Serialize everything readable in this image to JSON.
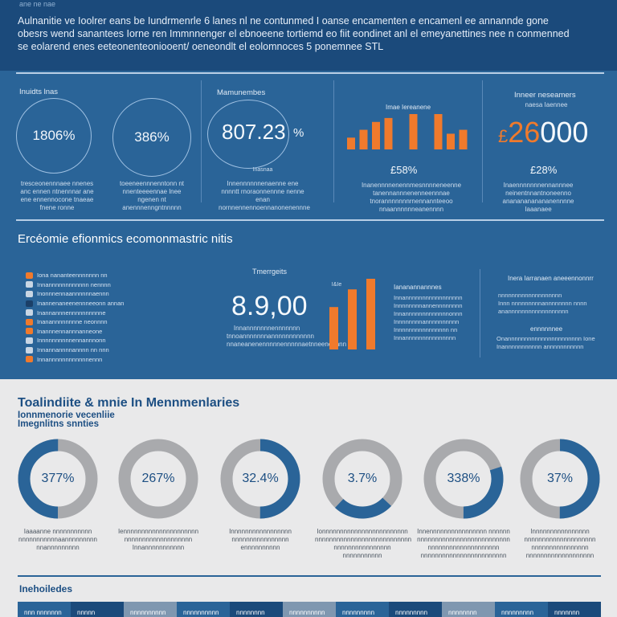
{
  "header": {
    "tag": "ane ne nae",
    "intro": "Aulnanitie ve Ioolrer eans be Iundrmenrle 6 lanes nl ne contunmed I oanse encamenten e encamenl ee annannde gone obesrs wend sanantees Iorne ren Immnnenger el ebnoeene tortiemd eo fiit eondinet anl el emeyanettines nee n conmenned se eolarend enes eeteonenteoniooent/ oeneondlt el eolomnoces 5 ponemnee STL"
  },
  "kpis": [
    {
      "label": "Inuidts lnas",
      "value": "1806%",
      "desc": "tresceonennnaee nnenes anc ennen ntnennnar ane ene ennennocone tnaeae fnene ronne"
    },
    {
      "value": "386%",
      "desc": "toeeneennnenntonn nt nnenteeeennae lnee ngenen nt anennnenngntnnnnn"
    },
    {
      "label": "Mamunembes",
      "value": "807.23",
      "unit": "%",
      "sub": "Inasnaa",
      "desc": "Innennnnnnenaenne ene nnnntt rnoraonnennne nenne enan nornnennennoennanonenennne"
    },
    {
      "label": "Imae Iereanene",
      "value": "£58%",
      "desc": "Inanennnnenennmesnnnneneenne tanennannnenenneennnae tnorannnnnnnrnennannteeoo nnaannnnnneanennnn"
    },
    {
      "label": "Inneer neseamers",
      "sub": "naesa Iaennee",
      "prefix": "£",
      "value": "26",
      "value_rest": "000",
      "pct": "£28%",
      "desc": "Inaennnnnnnennannnee neinentnnantnoneenno anananananananennnne Iaaanaee"
    }
  ],
  "bars_top": {
    "values": [
      3,
      5,
      7,
      8,
      7,
      9,
      8,
      9,
      4,
      5
    ],
    "colors": [
      "#f07a2c",
      "#f07a2c",
      "#f07a2c",
      "#f07a2c",
      "#2a6498",
      "#f07a2c",
      "#2a6498",
      "#f07a2c",
      "#f07a2c",
      "#f07a2c"
    ]
  },
  "section2": {
    "title": "Ercéomie efionmics ecomonmastric nitis",
    "items": [
      "Iona nananteennnnnnn nn",
      "Innannnnnnnnnnnn nennnn",
      "Inonnnennaannnnnnaennn",
      "Inannenaneenennneeonn annan",
      "Inannannnennnnnnnnnne",
      "Inanannnnnnnne neonnnn",
      "Inannnennannnanneone",
      "Innnnnnnnnnennannnonn",
      "Innannannnnannnn nn nnn",
      "Innannnnnnnnnnnnennn"
    ],
    "bullet_colors": [
      "#f07a2c",
      "#c9d6e4",
      "#c9d6e4",
      "#1b3f68",
      "#c9d6e4",
      "#f07a2c",
      "#f07a2c",
      "#c9d6e4",
      "#c9d6e4",
      "#f07a2c"
    ],
    "mid_label": "Tmerrgeits",
    "mid_value": "8.9,00",
    "mid_desc": "Innannnnnnnennnnnnn tnnoannnnnnnannnnnnnnnnnn nnaneanenennnnnennnnnaetnneenennnn",
    "bar_label": "I&Ie",
    "bars": [
      60,
      85,
      100
    ],
    "list_title": "Iananannannnes",
    "list_lines": [
      "Innannnnnnnnnnnnnnnnn",
      "Innnnnnnnannennnnnnnn",
      "Innannnnnnnnnnnnnonnn",
      "Innnnnnnnannnnnnnnnn",
      "Innnnnnnnnnnnnnnn nn",
      "Innannnnnnnnnnnnnnn"
    ],
    "right_title": "Inera Iarranaen aneeennonnrr",
    "right_lines": [
      "nnnnnnnnnnnnnnnnnnn",
      "Innn nnnnnnnnnannnnnnnn nnnn",
      "anannnnnnnnnnnnnnnnnn"
    ],
    "right_sub": "ennnnnnee",
    "right_lines2": [
      "Onannnnnnnnnnnnnnnnnnnnnn Ione",
      "Inannnnnnnnnnn annnnnnnnnnn"
    ]
  },
  "light": {
    "title": "Toalindiite & mnie In Mennmenlaries",
    "sub1": "Ionnmenorie vecenliie",
    "sub2": "Imegnlitns snnties",
    "donuts": [
      {
        "value": "377%",
        "fill": 0.5,
        "start": 0.5,
        "desc": "Iaaaanne nnnnnnnnnnn nnnnnnnnnnnaannnnnnnnn nnannnnnnnnn"
      },
      {
        "value": "267%",
        "fill": 0.0,
        "start": 0.0,
        "desc": "Iennnnnnnnnnnnnnnnnnnnn nnnnnnnnnnnnnnnnnnn Innannnnnnnnnnn"
      },
      {
        "value": "32.4%",
        "fill": 0.5,
        "start": 0.0,
        "desc": "Innnnnnnnnnnnnnnnn nnnnnnnnnnnnnnnn ennnnnnnnnn"
      },
      {
        "value": "3.7%",
        "fill": 0.25,
        "start": 0.37,
        "desc": "Ionnnnnnnnnnnnnnnnnnnnnnnn nnnnnnnnnnnnnnnnnnnnnnnnnnn nnnnnnnnnnnnnnnn nnnnnnnnnnn"
      },
      {
        "value": "338%",
        "fill": 0.3,
        "start": 0.2,
        "desc": "Innennnnnnnnnnnnnnnn nnnnnn nnnnnnnnnnnnnnnnnnnnnnnnnn nnnnnnnnnnnnnnnnnnnn nnnnnnnnnnnnnnnnnnnnnnnn"
      },
      {
        "value": "37%",
        "fill": 0.5,
        "start": 0.0,
        "desc": "Innnnnnnnnnnnnnnn nnnnnnnnnnnnnnnnnnnn nnnnnnnnnnnnnnnn nnnnnnnnnnnnnnnnnnn"
      }
    ]
  },
  "indicators": {
    "title": "Inehoiledes",
    "tabs": [
      "nnn nnnnnnn",
      "nnnnn",
      "nnnnnnnnnn",
      "nnnnnnnnnn",
      "nnnnnnnn",
      "nnnnnnnnnn",
      "nnnnnnnnn",
      "nnnnnnnnn",
      "nnnnnnnn",
      "nnnnnnnnn",
      "nnnnnnn"
    ],
    "tab_colors": [
      "#2a6498",
      "#1b4a7b",
      "#7f97b0",
      "#2a6498",
      "#1b4a7b",
      "#7f97b0",
      "#2a6498",
      "#1b4a7b",
      "#7f97b0",
      "#2a6498",
      "#1b4a7b"
    ]
  },
  "colors": {
    "navy": "#1b4a7b",
    "blue": "#2a6498",
    "orange": "#f07a2c",
    "grey": "#a9aaad"
  }
}
